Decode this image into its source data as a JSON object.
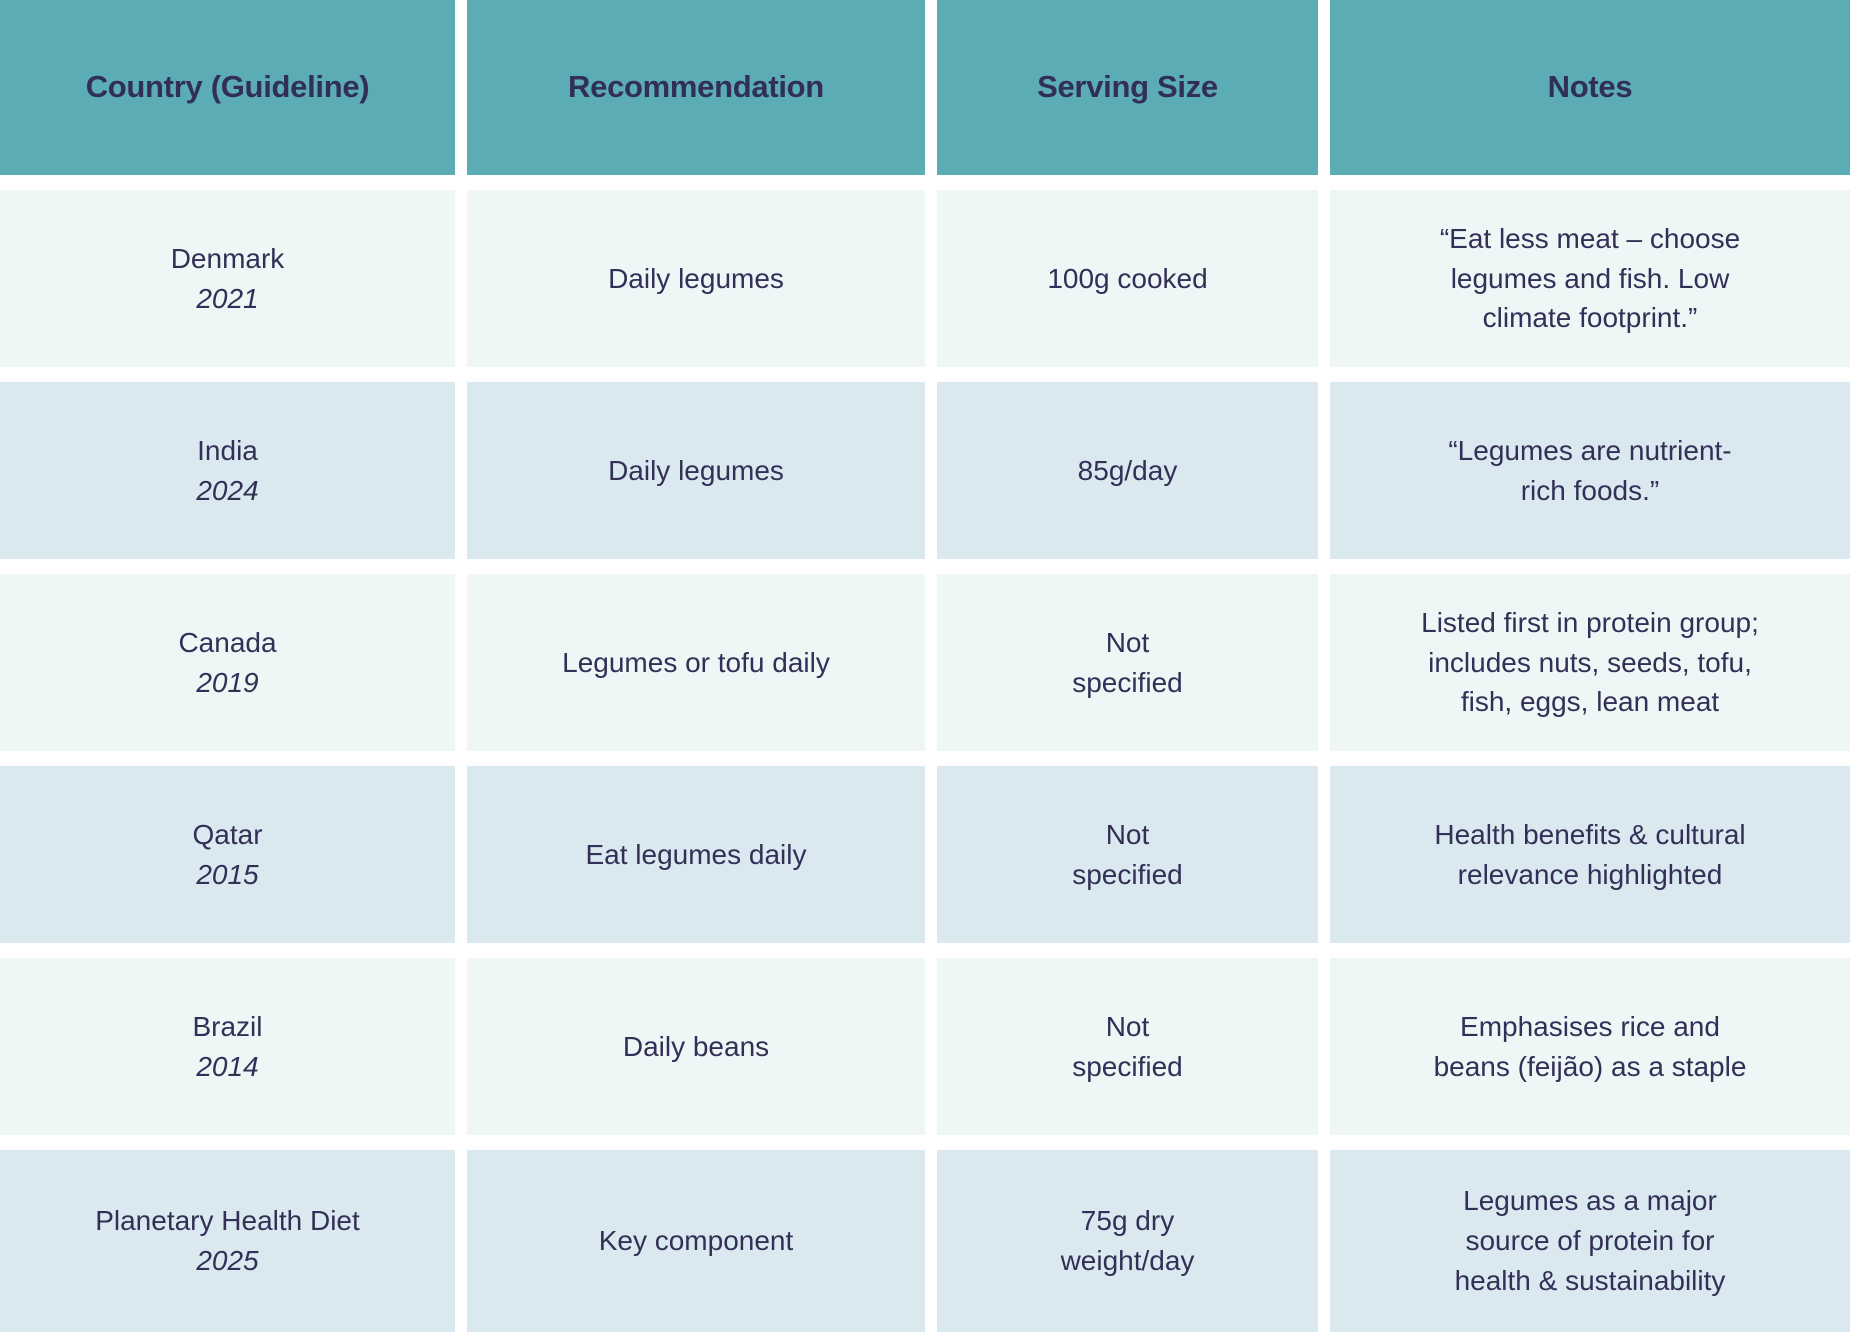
{
  "colors": {
    "header_bg": "#5BACB5",
    "row_mint": "#EEF6F6",
    "row_blue": "#DAE9F0",
    "text": "#323056",
    "gap_white": "#FFFFFF"
  },
  "header": {
    "country": "Country (Guideline)",
    "recommendation": "Recommendation",
    "serving": "Serving Size",
    "notes": "Notes"
  },
  "rows": [
    {
      "country": "Denmark",
      "year": "2021",
      "recommendation": "Daily legumes",
      "serving": "100g cooked",
      "notes": "“Eat less meat – choose\nlegumes and fish. Low\nclimate footprint.”"
    },
    {
      "country": "India",
      "year": "2024",
      "recommendation": "Daily legumes",
      "serving": "85g/day",
      "notes": "“Legumes are nutrient-\nrich foods.”"
    },
    {
      "country": "Canada",
      "year": "2019",
      "recommendation": "Legumes or tofu daily",
      "serving": "Not\nspecified",
      "notes": "Listed first in protein group;\nincludes nuts, seeds, tofu,\nfish, eggs, lean meat"
    },
    {
      "country": "Qatar",
      "year": "2015",
      "recommendation": "Eat legumes daily",
      "serving": "Not\nspecified",
      "notes": "Health benefits & cultural\nrelevance highlighted"
    },
    {
      "country": "Brazil",
      "year": "2014",
      "recommendation": "Daily beans",
      "serving": "Not\nspecified",
      "notes": "Emphasises rice and\nbeans (feijão) as a staple"
    },
    {
      "country": "Planetary Health Diet",
      "year": "2025",
      "recommendation": "Key component",
      "serving": "75g dry\nweight/day",
      "notes": "Legumes as a major\nsource of protein for\nhealth & sustainability"
    }
  ]
}
